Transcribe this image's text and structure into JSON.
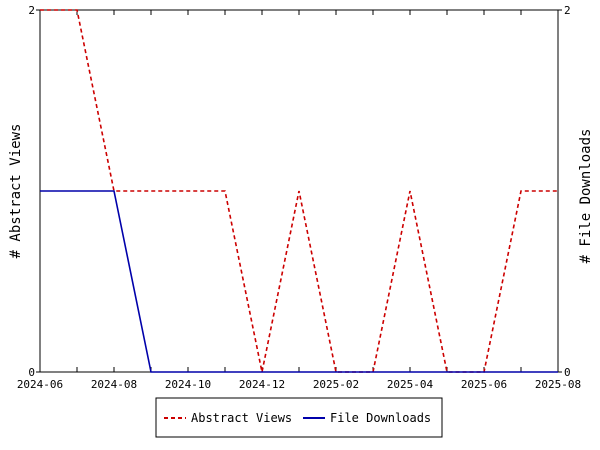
{
  "chart_data": {
    "type": "line",
    "x": [
      "2024-06",
      "2024-07",
      "2024-08",
      "2024-09",
      "2024-10",
      "2024-11",
      "2024-12",
      "2025-01",
      "2025-02",
      "2025-03",
      "2025-04",
      "2025-05",
      "2025-06",
      "2025-07",
      "2025-08"
    ],
    "x_tick_labels": [
      "2024-06",
      "2024-08",
      "2024-10",
      "2024-12",
      "2025-02",
      "2025-04",
      "2025-06",
      "2025-08"
    ],
    "series": [
      {
        "name": "Abstract Views",
        "axis": "left",
        "color": "#cc0000",
        "dash": "dashed",
        "values": [
          2,
          2,
          1,
          1,
          1,
          1,
          0,
          1,
          0,
          0,
          1,
          0,
          0,
          1,
          1
        ]
      },
      {
        "name": "File Downloads",
        "axis": "right",
        "color": "#0000aa",
        "dash": "solid",
        "values": [
          1,
          1,
          1,
          0,
          0,
          0,
          0,
          0,
          0,
          0,
          0,
          0,
          0,
          0,
          0
        ]
      }
    ],
    "ylabel_left": "# Abstract Views",
    "ylabel_right": "# File Downloads",
    "ylim_left": [
      0,
      2
    ],
    "ylim_right": [
      0,
      2
    ],
    "y_ticks_left": [
      "0",
      "2"
    ],
    "y_ticks_right": [
      "0",
      "2"
    ],
    "grid": false,
    "legend_position": "bottom"
  }
}
